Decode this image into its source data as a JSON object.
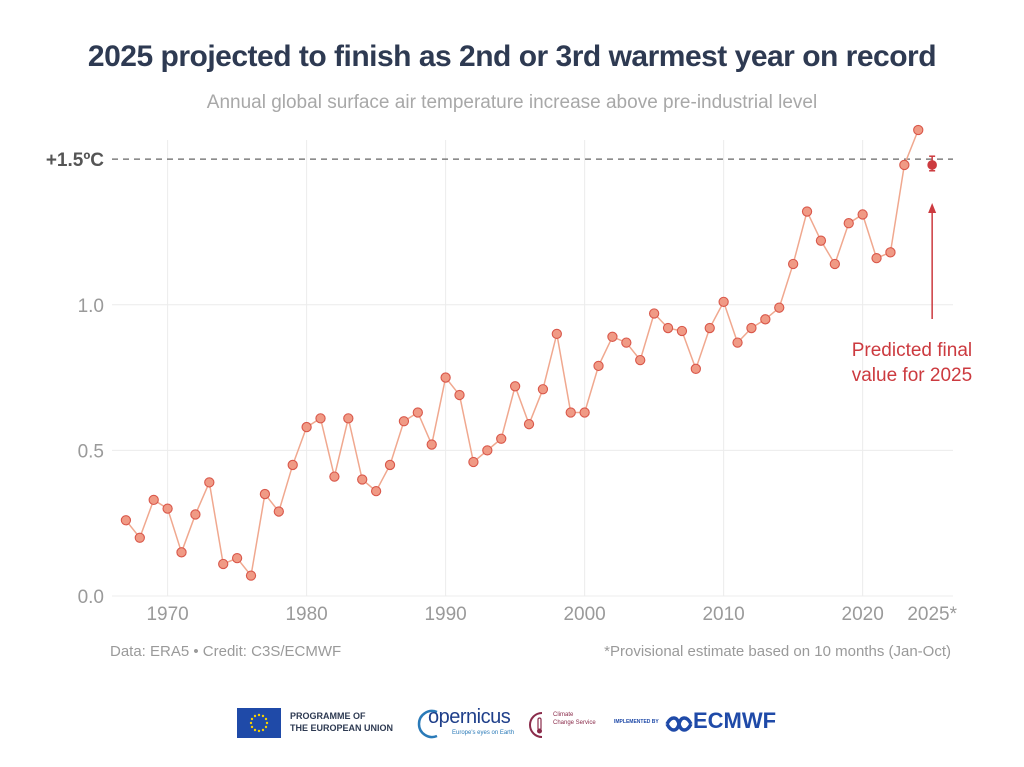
{
  "title": "2025 projected to finish as 2nd or 3rd warmest year on record",
  "subtitle": "Annual global surface air temperature increase above pre-industrial level",
  "footer_left": "Data: ERA5 • Credit: C3S/ECMWF",
  "footer_right": "*Provisional estimate based on 10 months (Jan-Oct)",
  "logos": {
    "eu": "PROGRAMME OF",
    "eu2": "THE EUROPEAN UNION",
    "copernicus": "opernicus",
    "copernicus_sub": "Europe's eyes on Earth",
    "c3s1": "Climate",
    "c3s2": "Change Service",
    "implemented": "IMPLEMENTED BY",
    "ecmwf": "ECMWF"
  },
  "colors": {
    "point": "#f09a85",
    "point_stroke": "#d9574a",
    "line": "#f0a88f",
    "highlight": "#cc3a3f",
    "reference": "#666666",
    "axis_text": "#9a9a9a",
    "grid": "#ececec"
  },
  "chart_data": {
    "type": "line",
    "title": "2025 projected to finish as 2nd or 3rd warmest year on record",
    "subtitle": "Annual global surface air temperature increase above pre-industrial level",
    "xlabel": "",
    "ylabel": "",
    "xlim": [
      1966,
      2026.5
    ],
    "ylim": [
      0,
      1.6
    ],
    "grid": true,
    "x_ticks": [
      1970,
      1980,
      1990,
      2000,
      2010,
      2020
    ],
    "x_tick_labels": [
      "1970",
      "1980",
      "1990",
      "2000",
      "2010",
      "2020"
    ],
    "final_tick_label": "2025*",
    "final_tick_x": 2025,
    "y_ticks": [
      0,
      0.5,
      1.0
    ],
    "y_tick_labels": [
      "0.0",
      "0.5",
      "1.0"
    ],
    "reference_line": {
      "y": 1.5,
      "label": "+1.5ºC"
    },
    "x": [
      1967,
      1968,
      1969,
      1970,
      1971,
      1972,
      1973,
      1974,
      1975,
      1976,
      1977,
      1978,
      1979,
      1980,
      1981,
      1982,
      1983,
      1984,
      1985,
      1986,
      1987,
      1988,
      1989,
      1990,
      1991,
      1992,
      1993,
      1994,
      1995,
      1996,
      1997,
      1998,
      1999,
      2000,
      2001,
      2002,
      2003,
      2004,
      2005,
      2006,
      2007,
      2008,
      2009,
      2010,
      2011,
      2012,
      2013,
      2014,
      2015,
      2016,
      2017,
      2018,
      2019,
      2020,
      2021,
      2022,
      2023,
      2024
    ],
    "y": [
      0.26,
      0.2,
      0.33,
      0.3,
      0.15,
      0.28,
      0.39,
      0.11,
      0.13,
      0.07,
      0.35,
      0.29,
      0.45,
      0.58,
      0.61,
      0.41,
      0.61,
      0.4,
      0.36,
      0.45,
      0.6,
      0.63,
      0.52,
      0.75,
      0.69,
      0.46,
      0.5,
      0.54,
      0.72,
      0.59,
      0.71,
      0.9,
      0.63,
      0.63,
      0.79,
      0.89,
      0.87,
      0.81,
      0.97,
      0.92,
      0.91,
      0.78,
      0.92,
      1.01,
      0.87,
      0.92,
      0.95,
      0.99,
      1.14,
      1.32,
      1.22,
      1.14,
      1.28,
      1.31,
      1.16,
      1.18,
      1.48,
      1.6
    ],
    "prediction": {
      "x": 2025,
      "y": 1.48,
      "low": 1.46,
      "high": 1.51,
      "label_lines": [
        "Predicted final",
        "value for 2025"
      ]
    }
  }
}
